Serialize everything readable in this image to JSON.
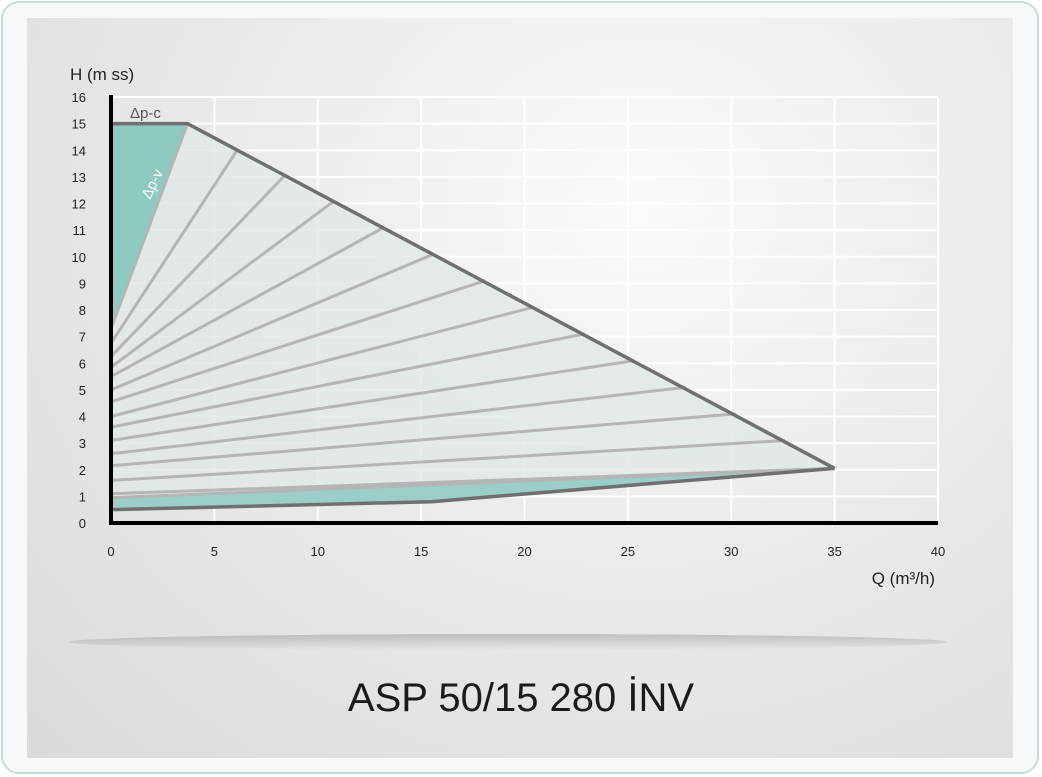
{
  "chart_data": {
    "type": "area",
    "xlabel": "Q (m³/h)",
    "ylabel": "H (m ss)",
    "xlim": [
      0,
      40
    ],
    "ylim": [
      0,
      16
    ],
    "xticks": [
      0,
      5,
      10,
      15,
      20,
      25,
      30,
      35,
      40
    ],
    "yticks": [
      0,
      1,
      2,
      3,
      4,
      5,
      6,
      7,
      8,
      9,
      10,
      11,
      12,
      13,
      14,
      15,
      16
    ],
    "grid": true,
    "envelope": {
      "x": [
        0,
        3.7,
        35,
        15.5,
        0
      ],
      "y": [
        15,
        15,
        2.05,
        0.8,
        0.5
      ]
    },
    "dp_c_band": {
      "x": [
        0,
        3.7,
        0.3,
        0
      ],
      "y": [
        15,
        15,
        8,
        7.5
      ]
    },
    "dp_v_lines": [
      {
        "x": [
          0,
          3.7
        ],
        "y": [
          7.3,
          15
        ]
      },
      {
        "x": [
          0,
          6.1
        ],
        "y": [
          6.75,
          14
        ]
      },
      {
        "x": [
          0,
          8.4
        ],
        "y": [
          6.25,
          13.05
        ]
      },
      {
        "x": [
          0,
          10.8
        ],
        "y": [
          5.85,
          12.1
        ]
      },
      {
        "x": [
          0,
          13.2
        ],
        "y": [
          5.5,
          11.1
        ]
      },
      {
        "x": [
          0,
          15.6
        ],
        "y": [
          5.0,
          10.1
        ]
      },
      {
        "x": [
          0,
          18.1
        ],
        "y": [
          4.55,
          9.1
        ]
      },
      {
        "x": [
          0,
          20.4
        ],
        "y": [
          4.0,
          8.1
        ]
      },
      {
        "x": [
          0,
          22.9
        ],
        "y": [
          3.6,
          7.1
        ]
      },
      {
        "x": [
          0,
          25.3
        ],
        "y": [
          3.1,
          6.1
        ]
      },
      {
        "x": [
          0,
          27.8
        ],
        "y": [
          2.6,
          5.1
        ]
      },
      {
        "x": [
          0,
          30.2
        ],
        "y": [
          2.15,
          4.1
        ]
      },
      {
        "x": [
          0,
          32.6
        ],
        "y": [
          1.6,
          3.1
        ]
      },
      {
        "x": [
          0,
          35.0
        ],
        "y": [
          1.1,
          2.05
        ]
      },
      {
        "x": [
          0,
          35.0
        ],
        "y": [
          0.95,
          2.05
        ]
      }
    ],
    "annotations": [
      "Δp-c",
      "Δp-v"
    ]
  },
  "title": "ASP 50/15 280 İNV",
  "colors": {
    "fill": "#dfe8e6",
    "teal": "#8ec9c2",
    "line": "#b5b5b5",
    "envelope": "#6f6f6f",
    "axis": "#000000"
  }
}
